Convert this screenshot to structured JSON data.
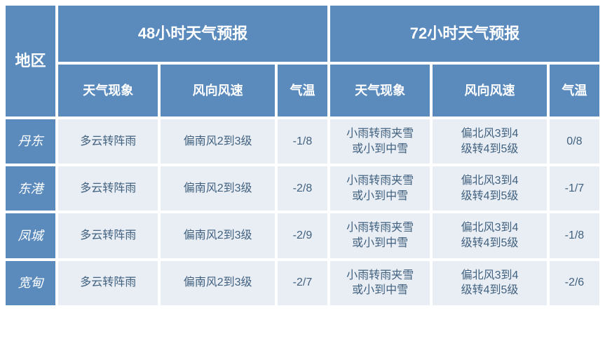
{
  "colors": {
    "header_bg": "#5b8bbd",
    "header_fg": "#ffffff",
    "cell_bg": "#e9eef5",
    "cell_fg": "#41617f",
    "page_bg": "#ffffff"
  },
  "table": {
    "type": "table",
    "forecast_groups": [
      {
        "title": "48小时天气预报"
      },
      {
        "title": "72小时天气预报"
      }
    ],
    "columns": {
      "region": "地区",
      "phenomenon": "天气现象",
      "wind": "风向风速",
      "temp": "气温"
    },
    "rows": [
      {
        "region": "丹东",
        "f48": {
          "phenomenon": "多云转阵雨",
          "wind": "偏南风2到3级",
          "temp": "-1/8"
        },
        "f72": {
          "phenomenon": "小雨转雨夹雪或小到中雪",
          "wind": "偏北风3到4级转4到5级",
          "temp": "0/8"
        }
      },
      {
        "region": "东港",
        "f48": {
          "phenomenon": "多云转阵雨",
          "wind": "偏南风2到3级",
          "temp": "-2/8"
        },
        "f72": {
          "phenomenon": "小雨转雨夹雪或小到中雪",
          "wind": "偏北风3到4级转4到5级",
          "temp": "-1/7"
        }
      },
      {
        "region": "凤城",
        "f48": {
          "phenomenon": "多云转阵雨",
          "wind": "偏南风2到3级",
          "temp": "-2/9"
        },
        "f72": {
          "phenomenon": "小雨转雨夹雪或小到中雪",
          "wind": "偏北风3到4级转4到5级",
          "temp": "-1/8"
        }
      },
      {
        "region": "宽甸",
        "f48": {
          "phenomenon": "多云转阵雨",
          "wind": "偏南风2到3级",
          "temp": "-2/7"
        },
        "f72": {
          "phenomenon": "小雨转雨夹雪或小到中雪",
          "wind": "偏北风3到4级转4到5级",
          "temp": "-2/6"
        }
      }
    ]
  }
}
